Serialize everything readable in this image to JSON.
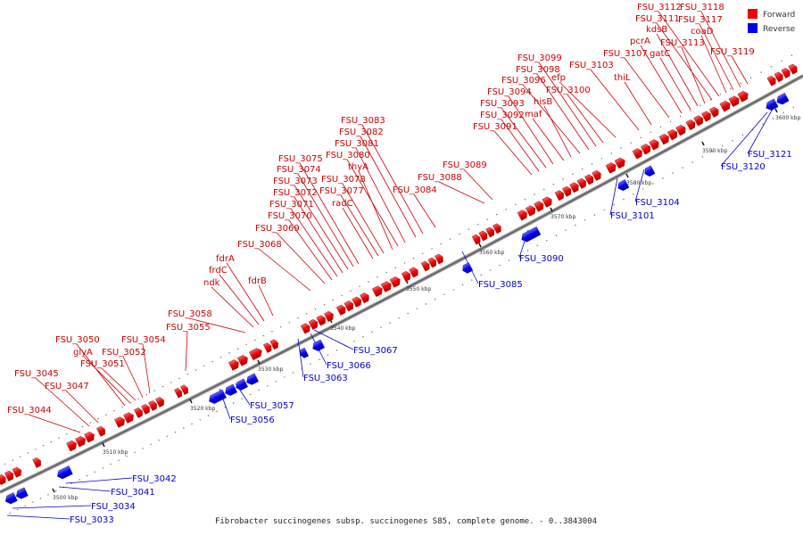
{
  "caption": "Fibrobacter succinogenes subsp. succinogenes S85, complete genome. - 0..3843004",
  "legend": [
    {
      "label": "Forward",
      "color": "#ee0000"
    },
    {
      "label": "Reverse",
      "color": "#0000ee"
    }
  ],
  "ticks": [
    "3500 kbp",
    "3510 kbp",
    "3520 kbp",
    "3530 kbp",
    "3540 kbp",
    "3550 kbp",
    "3560 kbp",
    "3570 kbp",
    "3580 kbp",
    "3590 kbp",
    "3600 kbp"
  ],
  "forward_genes": [
    "FSU_3044",
    "FSU_3045",
    "FSU_3047",
    "FSU_3050",
    "glyA",
    "FSU_3051",
    "FSU_3052",
    "FSU_3054",
    "FSU_3055",
    "FSU_3058",
    "ndk",
    "frdC",
    "fdrA",
    "fdrB",
    "FSU_3068",
    "FSU_3069",
    "FSU_3070",
    "FSU_3071",
    "FSU_3072",
    "FSU_3073",
    "FSU_3074",
    "FSU_3075",
    "radC",
    "FSU_3077",
    "FSU_3078",
    "thyA",
    "FSU_3080",
    "FSU_3081",
    "FSU_3082",
    "FSU_3083",
    "FSU_3084",
    "FSU_3088",
    "FSU_3089",
    "FSU_3091",
    "FSU_3092",
    "FSU_3093",
    "FSU_3094",
    "maf",
    "hisB",
    "FSU_3096",
    "FSU_3098",
    "FSU_3099",
    "FSU_3100",
    "efp",
    "FSU_3103",
    "thiL",
    "FSU_3107",
    "pcrA",
    "gatC",
    "kdsB",
    "FSU_3113",
    "FSU_3111",
    "FSU_3112",
    "coaD",
    "FSU_3117",
    "FSU_3118",
    "FSU_3119"
  ],
  "reverse_genes": [
    "FSU_3033",
    "FSU_3034",
    "FSU_3041",
    "FSU_3042",
    "FSU_3056",
    "FSU_3057",
    "FSU_3063",
    "FSU_3066",
    "FSU_3067",
    "FSU_3085",
    "FSU_3090",
    "FSU_3101",
    "FSU_3104",
    "FSU_3120",
    "FSU_3121"
  ]
}
